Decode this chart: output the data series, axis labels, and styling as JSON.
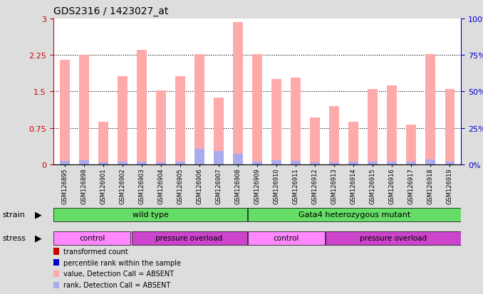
{
  "title": "GDS2316 / 1423027_at",
  "samples": [
    "GSM126895",
    "GSM126898",
    "GSM126901",
    "GSM126902",
    "GSM126903",
    "GSM126904",
    "GSM126905",
    "GSM126906",
    "GSM126907",
    "GSM126908",
    "GSM126909",
    "GSM126910",
    "GSM126911",
    "GSM126912",
    "GSM126913",
    "GSM126914",
    "GSM126915",
    "GSM126916",
    "GSM126917",
    "GSM126918",
    "GSM126919"
  ],
  "transformed_count": [
    2.15,
    2.25,
    0.88,
    1.82,
    2.35,
    1.52,
    1.82,
    2.27,
    1.38,
    2.92,
    2.27,
    1.75,
    1.78,
    0.97,
    1.2,
    0.88,
    1.55,
    1.62,
    0.82,
    2.27,
    1.55
  ],
  "percentile_rank": [
    0.07,
    0.09,
    0.04,
    0.05,
    0.05,
    0.04,
    0.05,
    0.32,
    0.27,
    0.22,
    0.06,
    0.09,
    0.07,
    0.04,
    0.04,
    0.05,
    0.05,
    0.05,
    0.06,
    0.1,
    0.05
  ],
  "ylim_left": [
    0,
    3
  ],
  "ylim_right": [
    0,
    100
  ],
  "yticks_left": [
    0,
    0.75,
    1.5,
    2.25,
    3
  ],
  "yticks_right": [
    0,
    25,
    50,
    75,
    100
  ],
  "stress_groups": [
    {
      "label": "control",
      "start": 0,
      "end": 4,
      "color": "#ff88ff"
    },
    {
      "label": "pressure overload",
      "start": 4,
      "end": 10,
      "color": "#cc44cc"
    },
    {
      "label": "control",
      "start": 10,
      "end": 14,
      "color": "#ff88ff"
    },
    {
      "label": "pressure overload",
      "start": 14,
      "end": 21,
      "color": "#cc44cc"
    }
  ],
  "bar_color_absent": "#ffaaaa",
  "rank_color_absent": "#aaaaee",
  "bg_color": "#dddddd",
  "plot_bg": "#ffffff",
  "left_axis_color": "#cc0000",
  "right_axis_color": "#0000cc",
  "strain_color": "#66dd66",
  "legend_items": [
    {
      "label": "transformed count",
      "color": "#cc0000"
    },
    {
      "label": "percentile rank within the sample",
      "color": "#0000cc"
    },
    {
      "label": "value, Detection Call = ABSENT",
      "color": "#ffaaaa"
    },
    {
      "label": "rank, Detection Call = ABSENT",
      "color": "#aaaaee"
    }
  ]
}
